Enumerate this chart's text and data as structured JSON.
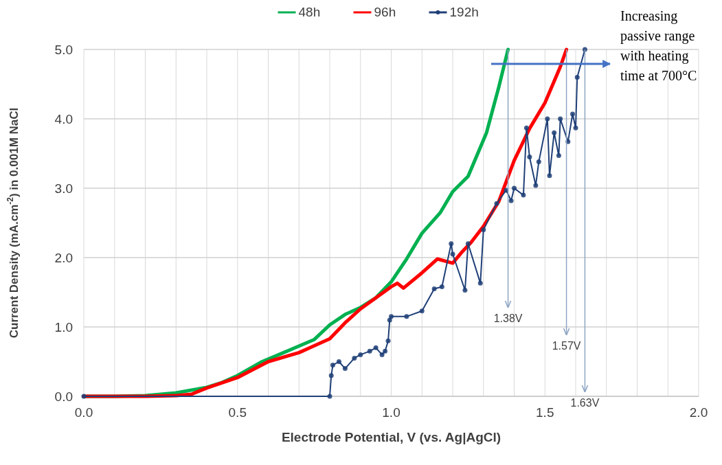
{
  "chart_data": {
    "type": "line",
    "xlabel": "Electrode Potential, V (vs. Ag|AgCl)",
    "ylabel": "Current Density (mA.cm$^{-2}$) in 0.001M NaCl",
    "xlim": [
      0,
      2
    ],
    "ylim": [
      0,
      5
    ],
    "xticks": [
      {
        "value": 0,
        "label": "0.0"
      },
      {
        "value": 0.1,
        "label": null
      },
      {
        "value": 0.2,
        "label": null
      },
      {
        "value": 0.3,
        "label": null
      },
      {
        "value": 0.4,
        "label": null
      },
      {
        "value": 0.5,
        "label": "0.5"
      },
      {
        "value": 0.6,
        "label": null
      },
      {
        "value": 0.7,
        "label": null
      },
      {
        "value": 0.8,
        "label": null
      },
      {
        "value": 0.9,
        "label": null
      },
      {
        "value": 1,
        "label": "1.0"
      },
      {
        "value": 1.1,
        "label": null
      },
      {
        "value": 1.2,
        "label": null
      },
      {
        "value": 1.3,
        "label": null
      },
      {
        "value": 1.4,
        "label": null
      },
      {
        "value": 1.5,
        "label": "1.5"
      },
      {
        "value": 1.6,
        "label": null
      },
      {
        "value": 1.7,
        "label": null
      },
      {
        "value": 1.8,
        "label": null
      },
      {
        "value": 1.9,
        "label": null
      },
      {
        "value": 2,
        "label": "2.0"
      }
    ],
    "yticks": [
      {
        "value": 0,
        "label": "0.0"
      },
      {
        "value": 1,
        "label": "1.0"
      },
      {
        "value": 2,
        "label": "2.0"
      },
      {
        "value": 3,
        "label": "3.0"
      },
      {
        "value": 4,
        "label": "4.0"
      },
      {
        "value": 5,
        "label": "5.0"
      }
    ],
    "grid": true,
    "legend": "top",
    "line_style": "solid",
    "ref_lines": [
      {
        "axis": "x",
        "value": 1.38,
        "label": "1.38V",
        "color": "#8fa6c4"
      },
      {
        "axis": "x",
        "value": 1.57,
        "label": "1.57V",
        "color": "#8fa6c4"
      },
      {
        "axis": "x",
        "value": 1.63,
        "label": "1.63V",
        "color": "#8fa6c4"
      }
    ],
    "series": [
      {
        "name": "48h",
        "color": "#00b050",
        "x": [
          0,
          0.1,
          0.2,
          0.3,
          0.4,
          0.45,
          0.5,
          0.58,
          0.65,
          0.75,
          0.8,
          0.85,
          0.9,
          0.95,
          1.0,
          1.05,
          1.1,
          1.16,
          1.2,
          1.25,
          1.31,
          1.35,
          1.38
        ],
        "values": [
          0,
          0,
          0.01,
          0.05,
          0.13,
          0.2,
          0.3,
          0.5,
          0.63,
          0.82,
          1.03,
          1.18,
          1.28,
          1.42,
          1.65,
          1.98,
          2.35,
          2.65,
          2.95,
          3.17,
          3.8,
          4.46,
          5.0
        ]
      },
      {
        "name": "96h",
        "color": "#ff0000",
        "x": [
          0,
          0.2,
          0.3,
          0.35,
          0.4,
          0.5,
          0.6,
          0.7,
          0.8,
          0.85,
          0.9,
          1.0,
          1.02,
          1.04,
          1.1,
          1.15,
          1.2,
          1.23,
          1.26,
          1.3,
          1.35,
          1.4,
          1.45,
          1.5,
          1.55,
          1.57
        ],
        "values": [
          0,
          0,
          0.01,
          0.03,
          0.12,
          0.27,
          0.5,
          0.63,
          0.83,
          1.06,
          1.26,
          1.58,
          1.63,
          1.56,
          1.78,
          1.98,
          1.92,
          2.08,
          2.22,
          2.45,
          2.81,
          3.4,
          3.86,
          4.23,
          4.75,
          5.0
        ]
      },
      {
        "name": "192h",
        "color": "#1f3f77",
        "marker": "circle",
        "x": [
          0,
          0.8,
          0.805,
          0.81,
          0.83,
          0.85,
          0.88,
          0.9,
          0.93,
          0.95,
          0.97,
          0.98,
          0.99,
          0.995,
          1.0,
          1.05,
          1.1,
          1.14,
          1.165,
          1.195,
          1.2,
          1.24,
          1.25,
          1.29,
          1.3,
          1.343,
          1.374,
          1.39,
          1.4,
          1.43,
          1.44,
          1.45,
          1.47,
          1.48,
          1.508,
          1.515,
          1.53,
          1.545,
          1.55,
          1.575,
          1.59,
          1.6,
          1.605,
          1.63
        ],
        "values": [
          0,
          0,
          0.3,
          0.45,
          0.5,
          0.4,
          0.55,
          0.6,
          0.65,
          0.7,
          0.6,
          0.65,
          0.8,
          1.1,
          1.15,
          1.15,
          1.23,
          1.55,
          1.58,
          2.2,
          2.05,
          1.53,
          2.2,
          1.63,
          2.4,
          2.78,
          2.97,
          2.82,
          3.0,
          2.9,
          3.87,
          3.45,
          3.04,
          3.38,
          4.0,
          3.18,
          3.8,
          3.47,
          4.0,
          3.67,
          4.07,
          3.87,
          4.6,
          5.0
        ]
      }
    ],
    "annotations": [
      "Increasing passive range with heating time at 700°C"
    ]
  }
}
